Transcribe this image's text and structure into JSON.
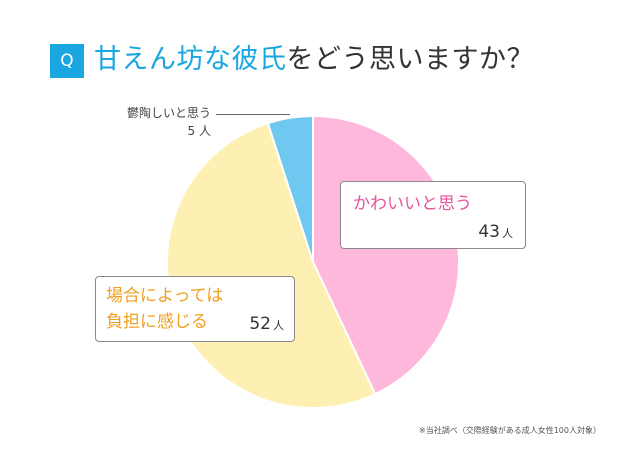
{
  "header": {
    "badge": "Q",
    "title_em": "甘えん坊な彼氏",
    "title_rest": "をどう思いますか？"
  },
  "chart_data": {
    "type": "pie",
    "unit": "人",
    "slices": [
      {
        "label": "かわいいと思う",
        "value": 43,
        "color": "#fdb8dc"
      },
      {
        "label": "場合によっては負担に感じる",
        "value": 52,
        "color": "#fdf0b2"
      },
      {
        "label": "鬱陶しいと思う",
        "value": 5,
        "color": "#6ec8ef"
      }
    ]
  },
  "labels": {
    "kawaii": {
      "text": "かわいいと思う",
      "count": "43",
      "unit": "人"
    },
    "baai": {
      "line1": "場合によっては",
      "line2": "負担に感じる",
      "count": "52",
      "unit": "人"
    },
    "uttoushii": {
      "text": "鬱陶しいと思う",
      "count": "5",
      "unit": "人"
    }
  },
  "source": "※当社調べ（交際経験がある成人女性100人対象）"
}
